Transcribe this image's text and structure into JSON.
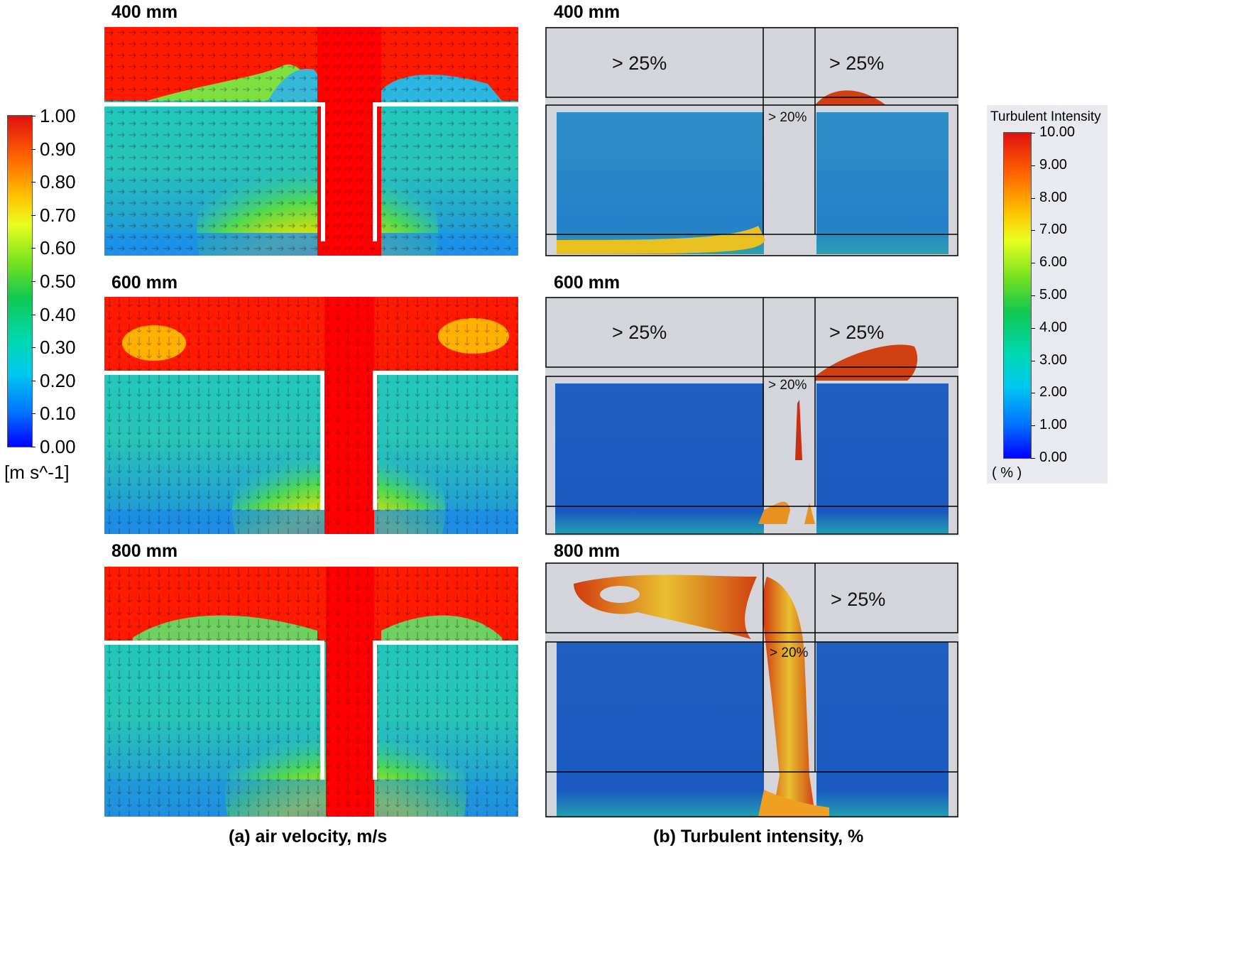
{
  "rows": [
    {
      "label": "400 mm",
      "label_b": "400 mm"
    },
    {
      "label": "600 mm",
      "label_b": "600 mm"
    },
    {
      "label": "800 mm",
      "label_b": "800 mm"
    }
  ],
  "panels_b": {
    "upper_left": "> 25%",
    "upper_right": "> 25%",
    "middle": "> 20%"
  },
  "left_colorbar": {
    "ticks": [
      "1.00",
      "0.90",
      "0.80",
      "0.70",
      "0.60",
      "0.50",
      "0.40",
      "0.30",
      "0.20",
      "0.10",
      "0.00"
    ],
    "unit": "[m s^-1]",
    "range": [
      0.0,
      1.0
    ]
  },
  "right_colorbar": {
    "title": "Turbulent Intensity",
    "ticks": [
      "10.00",
      "9.00",
      "8.00",
      "7.00",
      "6.00",
      "5.00",
      "4.00",
      "3.00",
      "2.00",
      "1.00",
      "0.00"
    ],
    "unit": "( % )",
    "range": [
      0.0,
      10.0
    ]
  },
  "captions": {
    "a": "(a) air velocity, m/s",
    "b": "(b) Turbulent intensity, %"
  },
  "colors": {
    "jet_high": "#ff0000",
    "jet_low": "#0000ff",
    "gray_panel": "#d3d5da"
  }
}
